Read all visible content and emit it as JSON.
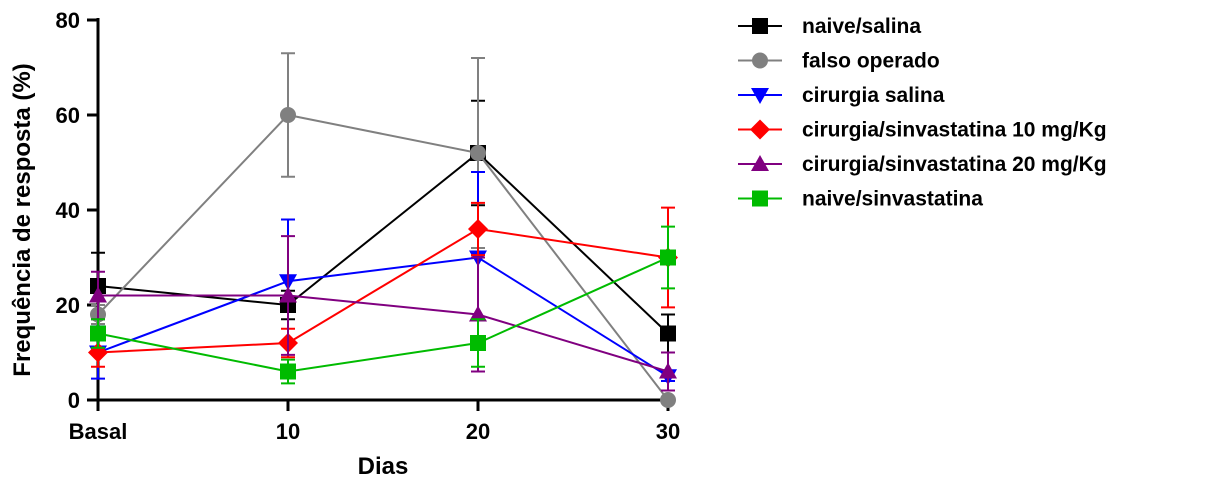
{
  "chart_data": {
    "type": "line",
    "title": "",
    "xlabel": "Dias",
    "ylabel": "Frequência de resposta (%)",
    "categories": [
      "Basal",
      "10",
      "20",
      "30"
    ],
    "ylim": [
      0,
      80
    ],
    "yticks": [
      "0",
      "20",
      "40",
      "60",
      "80"
    ],
    "grid": false,
    "legend_position": "right",
    "series": [
      {
        "name": "naive/salina",
        "color": "#000000",
        "marker": "square",
        "values": [
          24,
          20,
          52,
          14
        ],
        "errors": [
          7,
          3,
          11,
          4
        ]
      },
      {
        "name": "falso operado",
        "color": "#808080",
        "marker": "circle",
        "values": [
          18,
          60,
          52,
          0
        ],
        "errors": [
          2,
          13,
          20,
          0
        ]
      },
      {
        "name": "cirurgia salina",
        "color": "#0000ff",
        "marker": "triangle-down",
        "values": [
          10,
          25,
          30,
          5
        ],
        "errors": [
          5.5,
          13,
          18,
          1
        ]
      },
      {
        "name": "cirurgia/sinvastatina 10 mg/Kg",
        "color": "#ff0000",
        "marker": "diamond",
        "values": [
          10,
          12,
          36,
          30
        ],
        "errors": [
          3,
          3,
          5.5,
          10.5
        ]
      },
      {
        "name": "cirurgia/sinvastatina 20 mg/Kg",
        "color": "#800080",
        "marker": "triangle-up",
        "values": [
          22,
          22,
          18,
          6
        ],
        "errors": [
          5,
          12.5,
          12,
          4
        ]
      },
      {
        "name": "naive/sinvastatina",
        "color": "#00bb00",
        "marker": "square",
        "values": [
          14,
          6,
          12,
          30
        ],
        "errors": [
          3,
          2.5,
          5,
          6.5
        ]
      }
    ]
  }
}
